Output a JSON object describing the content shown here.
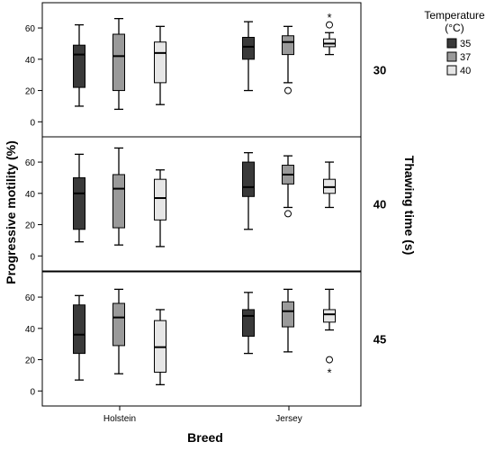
{
  "chart_data": {
    "type": "boxplot",
    "xlabel": "Breed",
    "ylabel": "Progressive motility (%)",
    "facet_label": "Thawing time (s)",
    "categories": [
      "Holstein",
      "Jersey"
    ],
    "yticks": [
      0,
      20,
      40,
      60
    ],
    "ylim": [
      -5,
      75
    ],
    "legend": {
      "title_line1": "Temperature",
      "title_line2": "(°C)",
      "position": "top-right",
      "entries": [
        {
          "label": "35",
          "color": "#3a3a3a"
        },
        {
          "label": "37",
          "color": "#9a9a9a"
        },
        {
          "label": "40",
          "color": "#e6e6e6"
        }
      ]
    },
    "panels": [
      {
        "facet": "30",
        "boxes": [
          {
            "breed": "Holstein",
            "temp": "35",
            "min": 10,
            "q1": 22,
            "median": 43,
            "q3": 49,
            "max": 62,
            "outliers": [],
            "extremes": []
          },
          {
            "breed": "Holstein",
            "temp": "37",
            "min": 8,
            "q1": 20,
            "median": 42,
            "q3": 56,
            "max": 66,
            "outliers": [],
            "extremes": []
          },
          {
            "breed": "Holstein",
            "temp": "40",
            "min": 11,
            "q1": 25,
            "median": 44,
            "q3": 51,
            "max": 61,
            "outliers": [],
            "extremes": []
          },
          {
            "breed": "Jersey",
            "temp": "35",
            "min": 20,
            "q1": 40,
            "median": 48,
            "q3": 54,
            "max": 64,
            "outliers": [],
            "extremes": []
          },
          {
            "breed": "Jersey",
            "temp": "37",
            "min": 25,
            "q1": 43,
            "median": 51,
            "q3": 55,
            "max": 61,
            "outliers": [
              20
            ],
            "extremes": []
          },
          {
            "breed": "Jersey",
            "temp": "40",
            "min": 43,
            "q1": 48,
            "median": 50,
            "q3": 53,
            "max": 57,
            "outliers": [
              62
            ],
            "extremes": [
              67
            ]
          }
        ]
      },
      {
        "facet": "40",
        "boxes": [
          {
            "breed": "Holstein",
            "temp": "35",
            "min": 9,
            "q1": 17,
            "median": 40,
            "q3": 50,
            "max": 65,
            "outliers": [],
            "extremes": []
          },
          {
            "breed": "Holstein",
            "temp": "37",
            "min": 7,
            "q1": 18,
            "median": 43,
            "q3": 52,
            "max": 69,
            "outliers": [],
            "extremes": []
          },
          {
            "breed": "Holstein",
            "temp": "40",
            "min": 6,
            "q1": 23,
            "median": 37,
            "q3": 49,
            "max": 55,
            "outliers": [],
            "extremes": []
          },
          {
            "breed": "Jersey",
            "temp": "35",
            "min": 17,
            "q1": 38,
            "median": 44,
            "q3": 60,
            "max": 66,
            "outliers": [],
            "extremes": []
          },
          {
            "breed": "Jersey",
            "temp": "37",
            "min": 31,
            "q1": 46,
            "median": 52,
            "q3": 58,
            "max": 64,
            "outliers": [
              27
            ],
            "extremes": []
          },
          {
            "breed": "Jersey",
            "temp": "40",
            "min": 31,
            "q1": 40,
            "median": 44,
            "q3": 49,
            "max": 60,
            "outliers": [],
            "extremes": []
          }
        ]
      },
      {
        "facet": "45",
        "boxes": [
          {
            "breed": "Holstein",
            "temp": "35",
            "min": 7,
            "q1": 24,
            "median": 36,
            "q3": 55,
            "max": 61,
            "outliers": [],
            "extremes": []
          },
          {
            "breed": "Holstein",
            "temp": "37",
            "min": 11,
            "q1": 29,
            "median": 47,
            "q3": 56,
            "max": 65,
            "outliers": [],
            "extremes": []
          },
          {
            "breed": "Holstein",
            "temp": "40",
            "min": 4,
            "q1": 12,
            "median": 28,
            "q3": 45,
            "max": 52,
            "outliers": [],
            "extremes": []
          },
          {
            "breed": "Jersey",
            "temp": "35",
            "min": 24,
            "q1": 35,
            "median": 48,
            "q3": 52,
            "max": 63,
            "outliers": [],
            "extremes": []
          },
          {
            "breed": "Jersey",
            "temp": "37",
            "min": 25,
            "q1": 41,
            "median": 51,
            "q3": 57,
            "max": 65,
            "outliers": [],
            "extremes": []
          },
          {
            "breed": "Jersey",
            "temp": "40",
            "min": 39,
            "q1": 44,
            "median": 49,
            "q3": 52,
            "max": 65,
            "outliers": [
              20
            ],
            "extremes": [
              12
            ]
          }
        ]
      }
    ]
  }
}
